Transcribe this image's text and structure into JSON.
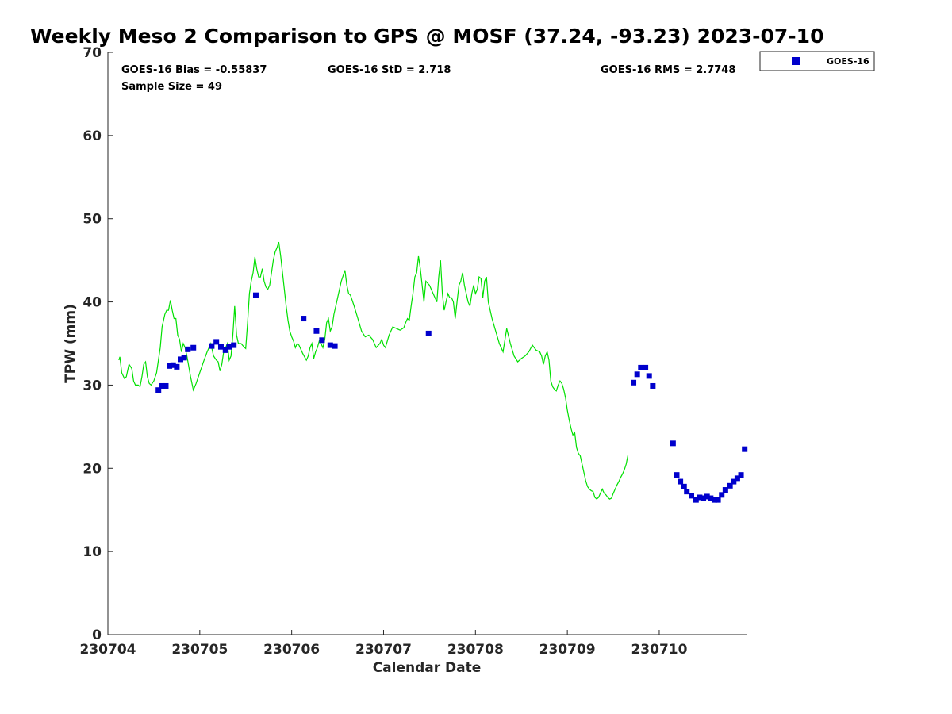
{
  "chart_data": {
    "type": "scatter",
    "title": "Weekly Meso 2 Comparison to GPS @ MOSF (37.24, -93.23) 2023-07-10",
    "xlabel": "Calendar Date",
    "ylabel": "TPW (mm)",
    "xlim": [
      0,
      6.95
    ],
    "ylim": [
      0,
      70
    ],
    "x_ticks": [
      {
        "value": 0,
        "label": "230704"
      },
      {
        "value": 1,
        "label": "230705"
      },
      {
        "value": 2,
        "label": "230706"
      },
      {
        "value": 3,
        "label": "230707"
      },
      {
        "value": 4,
        "label": "230708"
      },
      {
        "value": 5,
        "label": "230709"
      },
      {
        "value": 6,
        "label": "230710"
      }
    ],
    "y_ticks": [
      {
        "value": 0,
        "label": "0"
      },
      {
        "value": 10,
        "label": "10"
      },
      {
        "value": 20,
        "label": "20"
      },
      {
        "value": 30,
        "label": "30"
      },
      {
        "value": 40,
        "label": "40"
      },
      {
        "value": 50,
        "label": "50"
      },
      {
        "value": 60,
        "label": "60"
      },
      {
        "value": 70,
        "label": "70"
      }
    ],
    "stats": {
      "bias": "GOES-16 Bias = -0.55837",
      "std": "GOES-16 StD = 2.718",
      "rms": "GOES-16 RMS = 2.7748",
      "sample": "Sample Size = 49"
    },
    "legend": {
      "label": "GOES-16",
      "position": "top-right-outside"
    },
    "series": [
      {
        "name": "GPS",
        "kind": "line",
        "color": "#00e000",
        "points": [
          [
            0.12,
            33.0
          ],
          [
            0.13,
            33.4
          ],
          [
            0.15,
            31.5
          ],
          [
            0.18,
            30.8
          ],
          [
            0.2,
            31.0
          ],
          [
            0.23,
            32.5
          ],
          [
            0.26,
            32.0
          ],
          [
            0.28,
            30.5
          ],
          [
            0.3,
            30.0
          ],
          [
            0.33,
            30.0
          ],
          [
            0.35,
            29.8
          ],
          [
            0.37,
            31.0
          ],
          [
            0.39,
            32.5
          ],
          [
            0.41,
            32.8
          ],
          [
            0.43,
            31.0
          ],
          [
            0.45,
            30.2
          ],
          [
            0.47,
            30.0
          ],
          [
            0.5,
            30.5
          ],
          [
            0.53,
            31.5
          ],
          [
            0.55,
            33.0
          ],
          [
            0.57,
            34.5
          ],
          [
            0.59,
            37.0
          ],
          [
            0.62,
            38.5
          ],
          [
            0.64,
            39.0
          ],
          [
            0.66,
            39.0
          ],
          [
            0.68,
            40.2
          ],
          [
            0.7,
            39.0
          ],
          [
            0.72,
            38.0
          ],
          [
            0.74,
            38.0
          ],
          [
            0.76,
            36.0
          ],
          [
            0.78,
            35.5
          ],
          [
            0.8,
            34.0
          ],
          [
            0.82,
            35.0
          ],
          [
            0.84,
            34.5
          ],
          [
            0.86,
            33.5
          ],
          [
            0.9,
            31.0
          ],
          [
            0.93,
            29.4
          ],
          [
            0.96,
            30.2
          ],
          [
            1.0,
            31.5
          ],
          [
            1.04,
            32.8
          ],
          [
            1.08,
            34.0
          ],
          [
            1.12,
            35.0
          ],
          [
            1.15,
            33.5
          ],
          [
            1.18,
            33.0
          ],
          [
            1.2,
            32.8
          ],
          [
            1.22,
            31.7
          ],
          [
            1.24,
            32.5
          ],
          [
            1.26,
            34.0
          ],
          [
            1.28,
            34.5
          ],
          [
            1.3,
            35.0
          ],
          [
            1.32,
            33.0
          ],
          [
            1.34,
            33.5
          ],
          [
            1.36,
            36.0
          ],
          [
            1.38,
            39.5
          ],
          [
            1.4,
            36.0
          ],
          [
            1.42,
            35.0
          ],
          [
            1.45,
            35.0
          ],
          [
            1.48,
            34.6
          ],
          [
            1.5,
            34.4
          ],
          [
            1.52,
            37.5
          ],
          [
            1.54,
            41.0
          ],
          [
            1.56,
            42.5
          ],
          [
            1.58,
            43.5
          ],
          [
            1.6,
            45.4
          ],
          [
            1.62,
            44.0
          ],
          [
            1.64,
            43.0
          ],
          [
            1.66,
            43.0
          ],
          [
            1.68,
            44.0
          ],
          [
            1.7,
            42.5
          ],
          [
            1.72,
            41.8
          ],
          [
            1.74,
            41.5
          ],
          [
            1.76,
            42.0
          ],
          [
            1.78,
            43.5
          ],
          [
            1.8,
            45.0
          ],
          [
            1.82,
            46.0
          ],
          [
            1.84,
            46.5
          ],
          [
            1.86,
            47.2
          ],
          [
            1.88,
            45.5
          ],
          [
            1.9,
            43.5
          ],
          [
            1.92,
            41.5
          ],
          [
            1.94,
            39.5
          ],
          [
            1.96,
            37.8
          ],
          [
            1.98,
            36.5
          ],
          [
            2.0,
            35.8
          ],
          [
            2.02,
            35.3
          ],
          [
            2.04,
            34.5
          ],
          [
            2.06,
            35.0
          ],
          [
            2.08,
            34.8
          ],
          [
            2.1,
            34.3
          ],
          [
            2.12,
            33.8
          ],
          [
            2.14,
            33.4
          ],
          [
            2.16,
            33.0
          ],
          [
            2.18,
            33.5
          ],
          [
            2.2,
            34.5
          ],
          [
            2.22,
            35.0
          ],
          [
            2.24,
            33.2
          ],
          [
            2.26,
            34.0
          ],
          [
            2.28,
            34.5
          ],
          [
            2.3,
            35.3
          ],
          [
            2.32,
            35.0
          ],
          [
            2.34,
            34.5
          ],
          [
            2.36,
            35.5
          ],
          [
            2.38,
            37.5
          ],
          [
            2.4,
            38.0
          ],
          [
            2.42,
            36.5
          ],
          [
            2.44,
            37.0
          ],
          [
            2.46,
            38.5
          ],
          [
            2.5,
            40.5
          ],
          [
            2.54,
            42.5
          ],
          [
            2.58,
            43.8
          ],
          [
            2.6,
            42.0
          ],
          [
            2.62,
            41.0
          ],
          [
            2.64,
            40.8
          ],
          [
            2.68,
            39.5
          ],
          [
            2.72,
            38.0
          ],
          [
            2.76,
            36.5
          ],
          [
            2.8,
            35.8
          ],
          [
            2.84,
            36.0
          ],
          [
            2.88,
            35.5
          ],
          [
            2.92,
            34.5
          ],
          [
            2.96,
            35.0
          ],
          [
            2.98,
            35.5
          ],
          [
            3.0,
            34.8
          ],
          [
            3.02,
            34.5
          ],
          [
            3.06,
            36.0
          ],
          [
            3.1,
            37.0
          ],
          [
            3.14,
            36.8
          ],
          [
            3.18,
            36.6
          ],
          [
            3.22,
            36.9
          ],
          [
            3.24,
            37.5
          ],
          [
            3.26,
            38.0
          ],
          [
            3.28,
            37.8
          ],
          [
            3.3,
            39.5
          ],
          [
            3.32,
            41.0
          ],
          [
            3.34,
            43.0
          ],
          [
            3.36,
            43.5
          ],
          [
            3.38,
            45.5
          ],
          [
            3.4,
            44.0
          ],
          [
            3.42,
            42.0
          ],
          [
            3.44,
            40.0
          ],
          [
            3.46,
            42.5
          ],
          [
            3.5,
            42.0
          ],
          [
            3.54,
            41.0
          ],
          [
            3.58,
            40.0
          ],
          [
            3.6,
            43.0
          ],
          [
            3.62,
            45.0
          ],
          [
            3.64,
            41.0
          ],
          [
            3.66,
            39.0
          ],
          [
            3.68,
            40.0
          ],
          [
            3.7,
            41.0
          ],
          [
            3.72,
            40.5
          ],
          [
            3.74,
            40.5
          ],
          [
            3.76,
            40.0
          ],
          [
            3.78,
            38.0
          ],
          [
            3.8,
            40.0
          ],
          [
            3.82,
            42.0
          ],
          [
            3.84,
            42.5
          ],
          [
            3.86,
            43.5
          ],
          [
            3.88,
            42.0
          ],
          [
            3.9,
            41.0
          ],
          [
            3.92,
            40.0
          ],
          [
            3.94,
            39.5
          ],
          [
            3.96,
            41.0
          ],
          [
            3.98,
            42.0
          ],
          [
            4.0,
            41.0
          ],
          [
            4.02,
            41.5
          ],
          [
            4.04,
            43.0
          ],
          [
            4.06,
            42.8
          ],
          [
            4.08,
            40.5
          ],
          [
            4.1,
            42.5
          ],
          [
            4.12,
            43.0
          ],
          [
            4.14,
            40.0
          ],
          [
            4.18,
            38.0
          ],
          [
            4.22,
            36.5
          ],
          [
            4.26,
            35.0
          ],
          [
            4.3,
            34.0
          ],
          [
            4.34,
            36.8
          ],
          [
            4.38,
            35.0
          ],
          [
            4.42,
            33.5
          ],
          [
            4.46,
            32.8
          ],
          [
            4.5,
            33.2
          ],
          [
            4.54,
            33.5
          ],
          [
            4.58,
            34.0
          ],
          [
            4.62,
            34.8
          ],
          [
            4.66,
            34.2
          ],
          [
            4.7,
            34.0
          ],
          [
            4.72,
            33.5
          ],
          [
            4.74,
            32.5
          ],
          [
            4.76,
            33.5
          ],
          [
            4.78,
            34.0
          ],
          [
            4.8,
            33.0
          ],
          [
            4.82,
            30.5
          ],
          [
            4.84,
            29.8
          ],
          [
            4.86,
            29.5
          ],
          [
            4.88,
            29.3
          ],
          [
            4.9,
            30.0
          ],
          [
            4.92,
            30.5
          ],
          [
            4.94,
            30.2
          ],
          [
            4.96,
            29.5
          ],
          [
            4.98,
            28.5
          ],
          [
            5.0,
            27.0
          ],
          [
            5.02,
            25.8
          ],
          [
            5.04,
            24.8
          ],
          [
            5.06,
            24.0
          ],
          [
            5.08,
            24.3
          ],
          [
            5.1,
            22.5
          ],
          [
            5.12,
            21.8
          ],
          [
            5.14,
            21.5
          ],
          [
            5.16,
            20.5
          ],
          [
            5.18,
            19.5
          ],
          [
            5.2,
            18.5
          ],
          [
            5.22,
            17.8
          ],
          [
            5.24,
            17.5
          ],
          [
            5.26,
            17.3
          ],
          [
            5.28,
            17.2
          ],
          [
            5.3,
            16.5
          ],
          [
            5.32,
            16.3
          ],
          [
            5.34,
            16.5
          ],
          [
            5.36,
            17.0
          ],
          [
            5.38,
            17.5
          ],
          [
            5.4,
            17.0
          ],
          [
            5.42,
            16.8
          ],
          [
            5.44,
            16.5
          ],
          [
            5.46,
            16.3
          ],
          [
            5.48,
            16.4
          ],
          [
            5.5,
            17.0
          ],
          [
            5.52,
            17.5
          ],
          [
            5.54,
            18.0
          ],
          [
            5.56,
            18.4
          ],
          [
            5.58,
            18.9
          ],
          [
            5.6,
            19.3
          ],
          [
            5.62,
            19.8
          ],
          [
            5.64,
            20.5
          ],
          [
            5.66,
            21.6
          ]
        ]
      },
      {
        "name": "GOES-16",
        "kind": "scatter",
        "color": "#0000cc",
        "points": [
          [
            0.55,
            29.4
          ],
          [
            0.59,
            29.9
          ],
          [
            0.63,
            29.9
          ],
          [
            0.67,
            32.3
          ],
          [
            0.71,
            32.4
          ],
          [
            0.75,
            32.2
          ],
          [
            0.79,
            33.1
          ],
          [
            0.83,
            33.3
          ],
          [
            0.87,
            34.3
          ],
          [
            0.93,
            34.5
          ],
          [
            1.13,
            34.7
          ],
          [
            1.18,
            35.2
          ],
          [
            1.23,
            34.6
          ],
          [
            1.28,
            34.2
          ],
          [
            1.32,
            34.6
          ],
          [
            1.37,
            34.8
          ],
          [
            1.61,
            40.8
          ],
          [
            2.13,
            38.0
          ],
          [
            2.27,
            36.5
          ],
          [
            2.33,
            35.4
          ],
          [
            2.42,
            34.8
          ],
          [
            2.47,
            34.7
          ],
          [
            3.49,
            36.2
          ],
          [
            5.72,
            30.3
          ],
          [
            5.76,
            31.3
          ],
          [
            5.8,
            32.1
          ],
          [
            5.85,
            32.1
          ],
          [
            5.89,
            31.1
          ],
          [
            5.93,
            29.9
          ],
          [
            6.15,
            23.0
          ],
          [
            6.19,
            19.2
          ],
          [
            6.23,
            18.4
          ],
          [
            6.27,
            17.8
          ],
          [
            6.3,
            17.2
          ],
          [
            6.35,
            16.7
          ],
          [
            6.4,
            16.2
          ],
          [
            6.44,
            16.5
          ],
          [
            6.48,
            16.4
          ],
          [
            6.52,
            16.6
          ],
          [
            6.56,
            16.4
          ],
          [
            6.6,
            16.2
          ],
          [
            6.64,
            16.2
          ],
          [
            6.68,
            16.8
          ],
          [
            6.72,
            17.4
          ],
          [
            6.77,
            17.9
          ],
          [
            6.81,
            18.4
          ],
          [
            6.85,
            18.8
          ],
          [
            6.89,
            19.2
          ],
          [
            6.93,
            22.3
          ]
        ]
      }
    ]
  }
}
